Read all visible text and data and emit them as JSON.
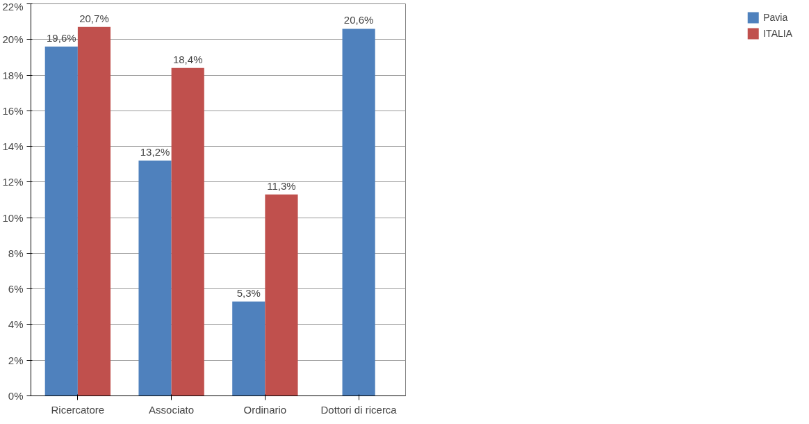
{
  "chart_data": {
    "type": "bar",
    "categories": [
      "Ricercatore",
      "Associato",
      "Ordinario",
      "Dottori di ricerca"
    ],
    "series": [
      {
        "name": "Pavia",
        "color": "#4f81bd",
        "values": [
          19.6,
          13.2,
          5.3,
          20.6
        ],
        "value_labels": [
          "19,6%",
          "13,2%",
          "5,3%",
          "20,6%"
        ]
      },
      {
        "name": "ITALIA",
        "color": "#c0504d",
        "values": [
          20.7,
          18.4,
          11.3,
          null
        ],
        "value_labels": [
          "20,7%",
          "18,4%",
          "11,3%",
          null
        ]
      }
    ],
    "ylim": [
      0,
      22
    ],
    "yticks": [
      {
        "value": 0,
        "label": "0%"
      },
      {
        "value": 2,
        "label": "2%"
      },
      {
        "value": 4,
        "label": "4%"
      },
      {
        "value": 6,
        "label": "6%"
      },
      {
        "value": 8,
        "label": "8%"
      },
      {
        "value": 10,
        "label": "10%"
      },
      {
        "value": 12,
        "label": "12%"
      },
      {
        "value": 14,
        "label": "14%"
      },
      {
        "value": 16,
        "label": "16%"
      },
      {
        "value": 18,
        "label": "18%"
      },
      {
        "value": 20,
        "label": "20%"
      },
      {
        "value": 22,
        "label": "22%"
      }
    ],
    "grid": "y",
    "legend": "right"
  }
}
